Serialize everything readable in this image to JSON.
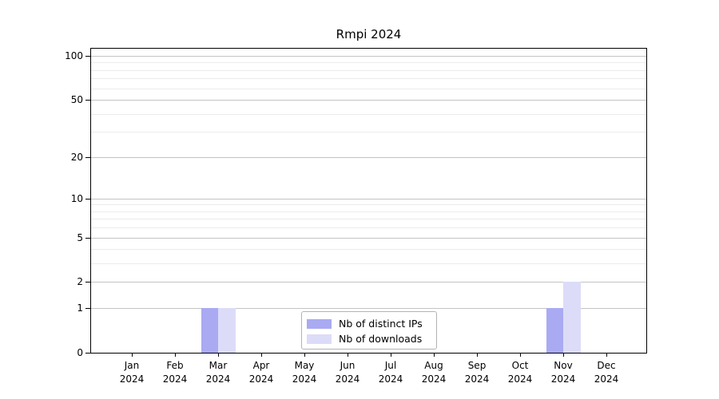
{
  "chart": {
    "title": "Rmpi 2024"
  },
  "chart_data": {
    "type": "bar",
    "title": "Rmpi 2024",
    "categories": [
      "Jan",
      "Feb",
      "Mar",
      "Apr",
      "May",
      "Jun",
      "Jul",
      "Aug",
      "Sep",
      "Oct",
      "Nov",
      "Dec"
    ],
    "year": "2024",
    "series": [
      {
        "name": "Nb of distinct IPs",
        "color": "#a9aaf2",
        "values": [
          0,
          0,
          1,
          0,
          0,
          0,
          0,
          0,
          0,
          0,
          1,
          0
        ]
      },
      {
        "name": "Nb of downloads",
        "color": "#dcdcf8",
        "values": [
          0,
          0,
          1,
          0,
          0,
          0,
          0,
          0,
          0,
          0,
          2,
          0
        ]
      }
    ],
    "xlabel": "",
    "ylabel": "",
    "yscale": "log1p",
    "ylim": [
      0,
      114
    ],
    "y_major_ticks": [
      100,
      50,
      20,
      10,
      5,
      2,
      1,
      0
    ],
    "y_minor_gridlines": [
      3,
      4,
      6,
      7,
      8,
      9,
      30,
      40,
      60,
      70,
      80,
      90
    ],
    "grid": "both",
    "legend_position": "lower center",
    "colors": {
      "axis": "#000000",
      "major_grid": "#c3c3c3",
      "minor_grid": "#ebebeb",
      "legend_border": "#b3b3b3",
      "background": "#ffffff"
    }
  }
}
